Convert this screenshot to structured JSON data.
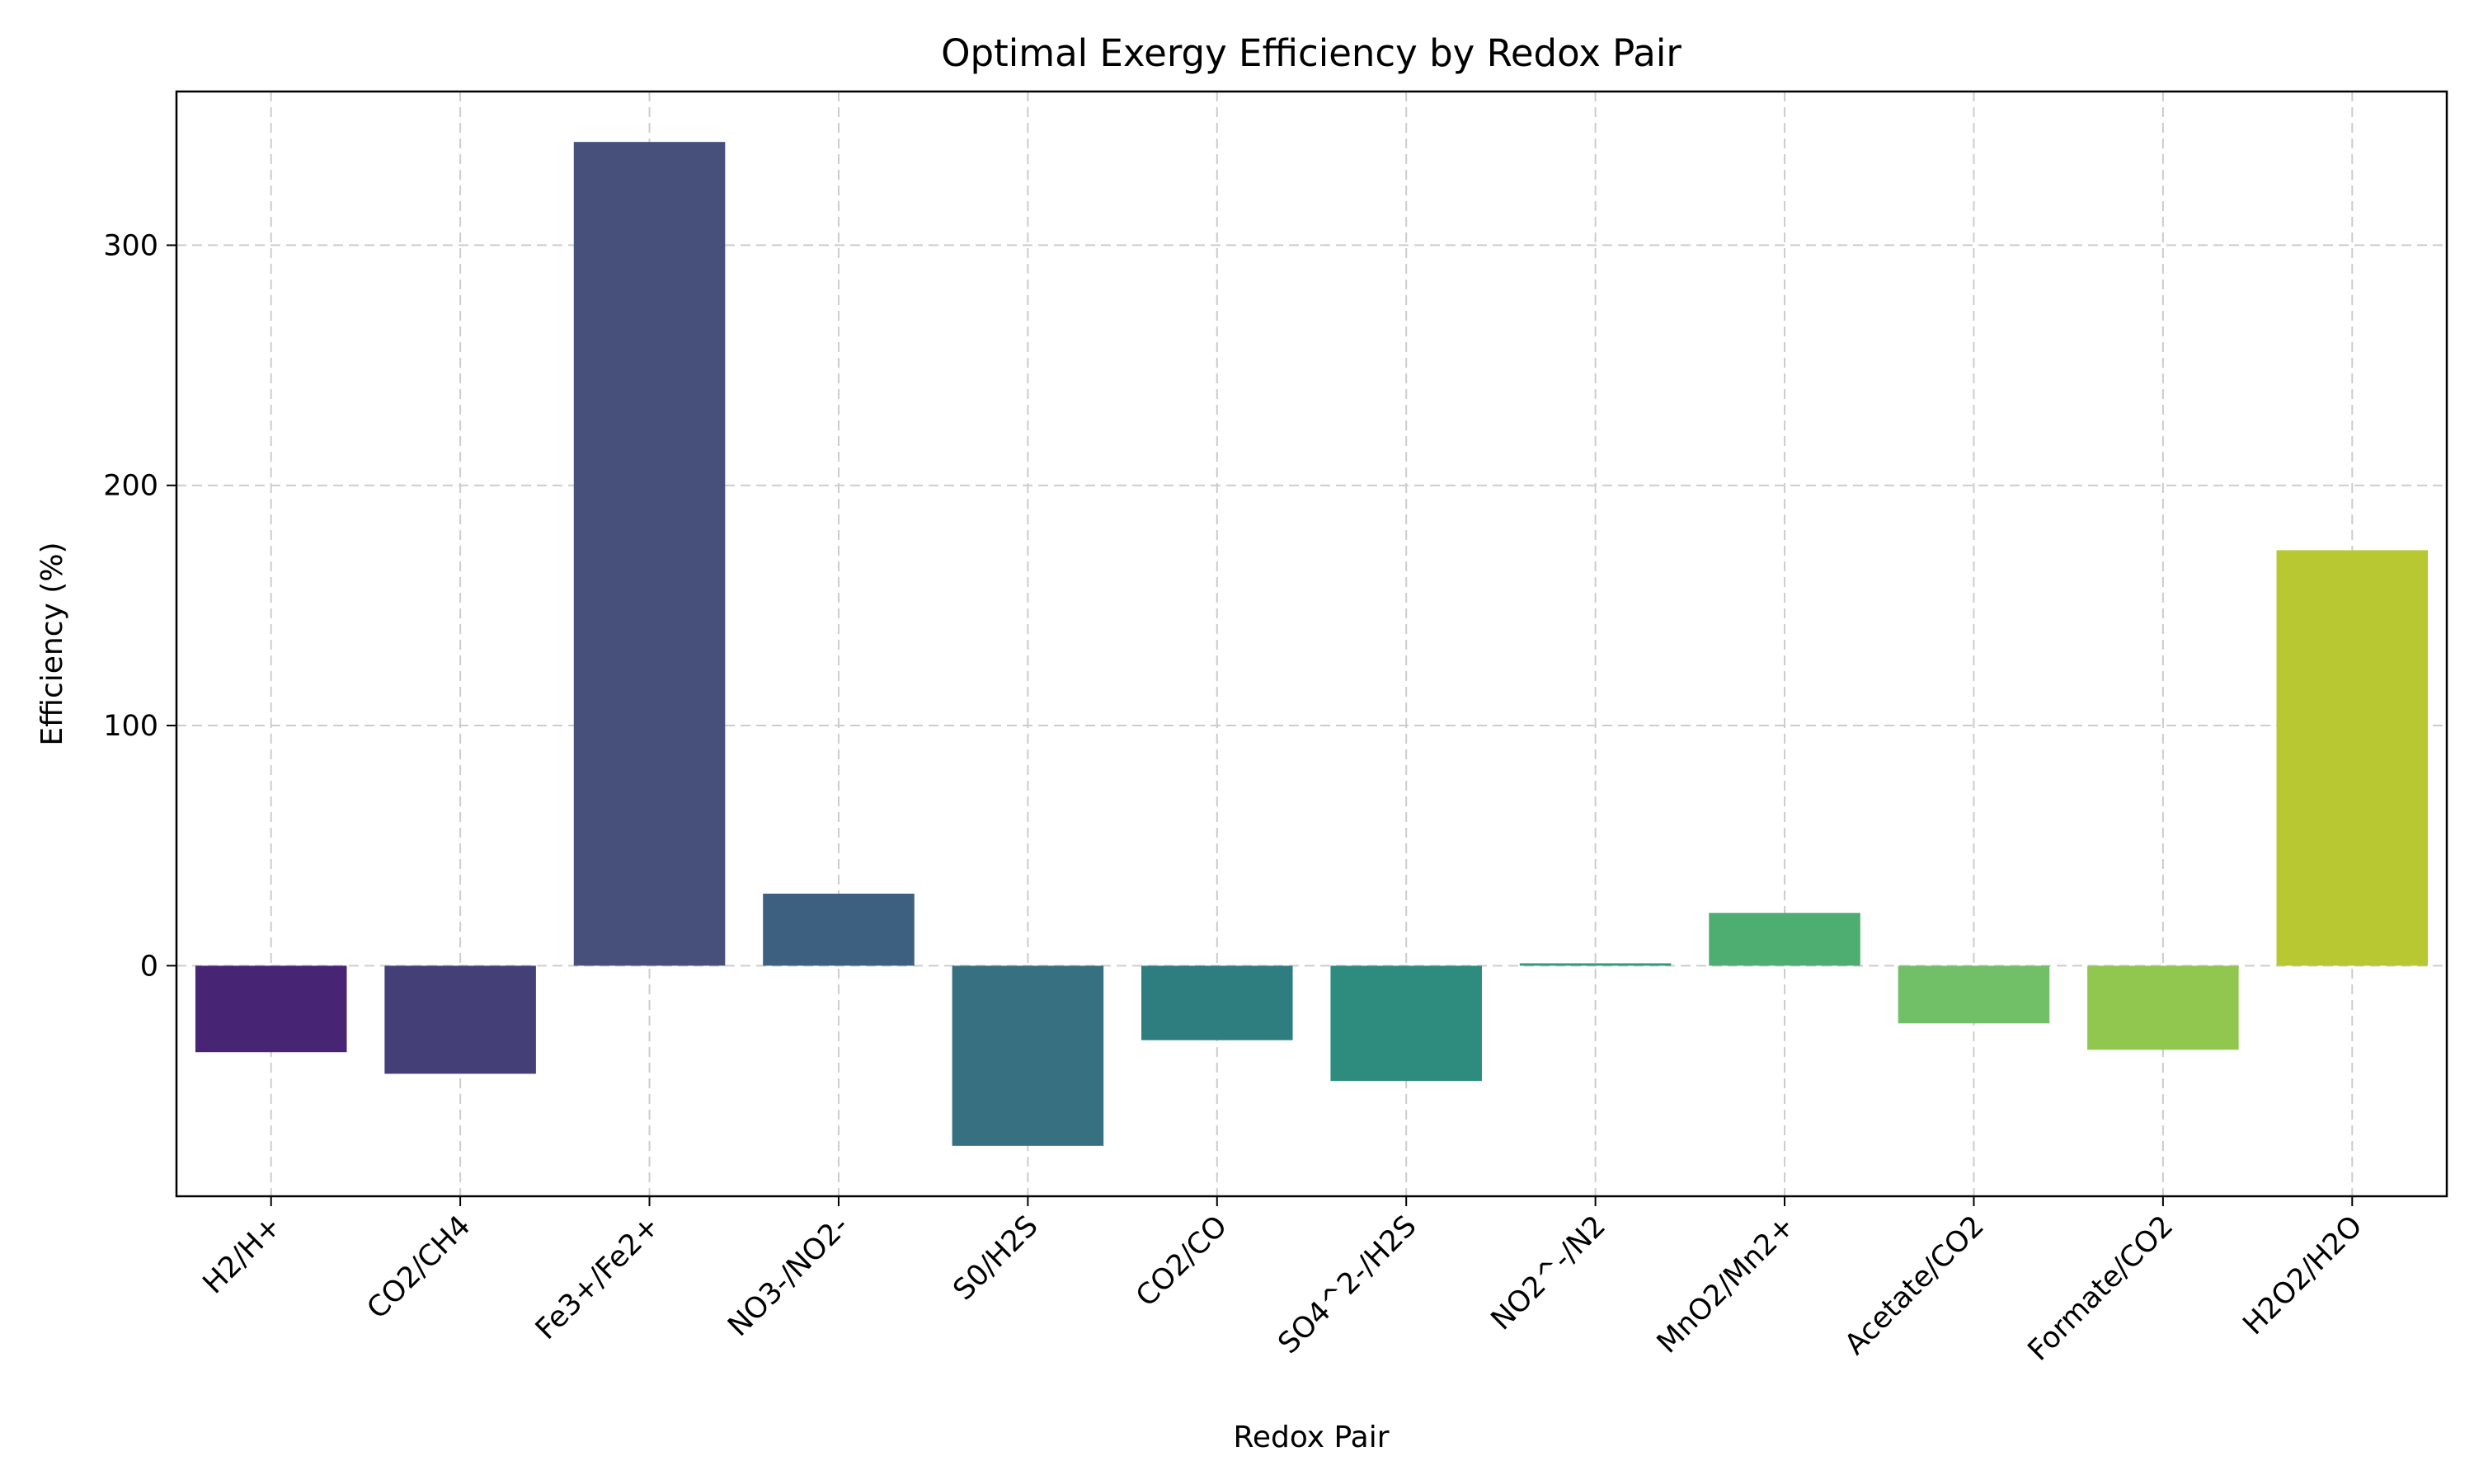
{
  "chart_data": {
    "type": "bar",
    "title": "Optimal Exergy Efficiency by Redox Pair",
    "xlabel": "Redox Pair",
    "ylabel": "Efficiency (%)",
    "categories": [
      "H2/H+",
      "CO2/CH4",
      "Fe3+/Fe2+",
      "NO3-/NO2-",
      "S0/H2S",
      "CO2/CO",
      "SO4^2-/H2S",
      "NO2^-/N2",
      "MnO2/Mn2+",
      "Acetate/CO2",
      "Formate/CO2",
      "H2O2/H2O"
    ],
    "values": [
      -36,
      -45,
      343,
      30,
      -75,
      -31,
      -48,
      1,
      22,
      -24,
      -35,
      173
    ],
    "colors": [
      "#482475",
      "#453f78",
      "#46507b",
      "#3d5f80",
      "#367081",
      "#2e7e80",
      "#2e8c7f",
      "#2d9c7a",
      "#4eae72",
      "#71bf66",
      "#91c74f",
      "#b8c832"
    ],
    "ylim": [
      -96,
      364
    ],
    "yticks": [
      0,
      100,
      200,
      300
    ],
    "grid": true
  }
}
